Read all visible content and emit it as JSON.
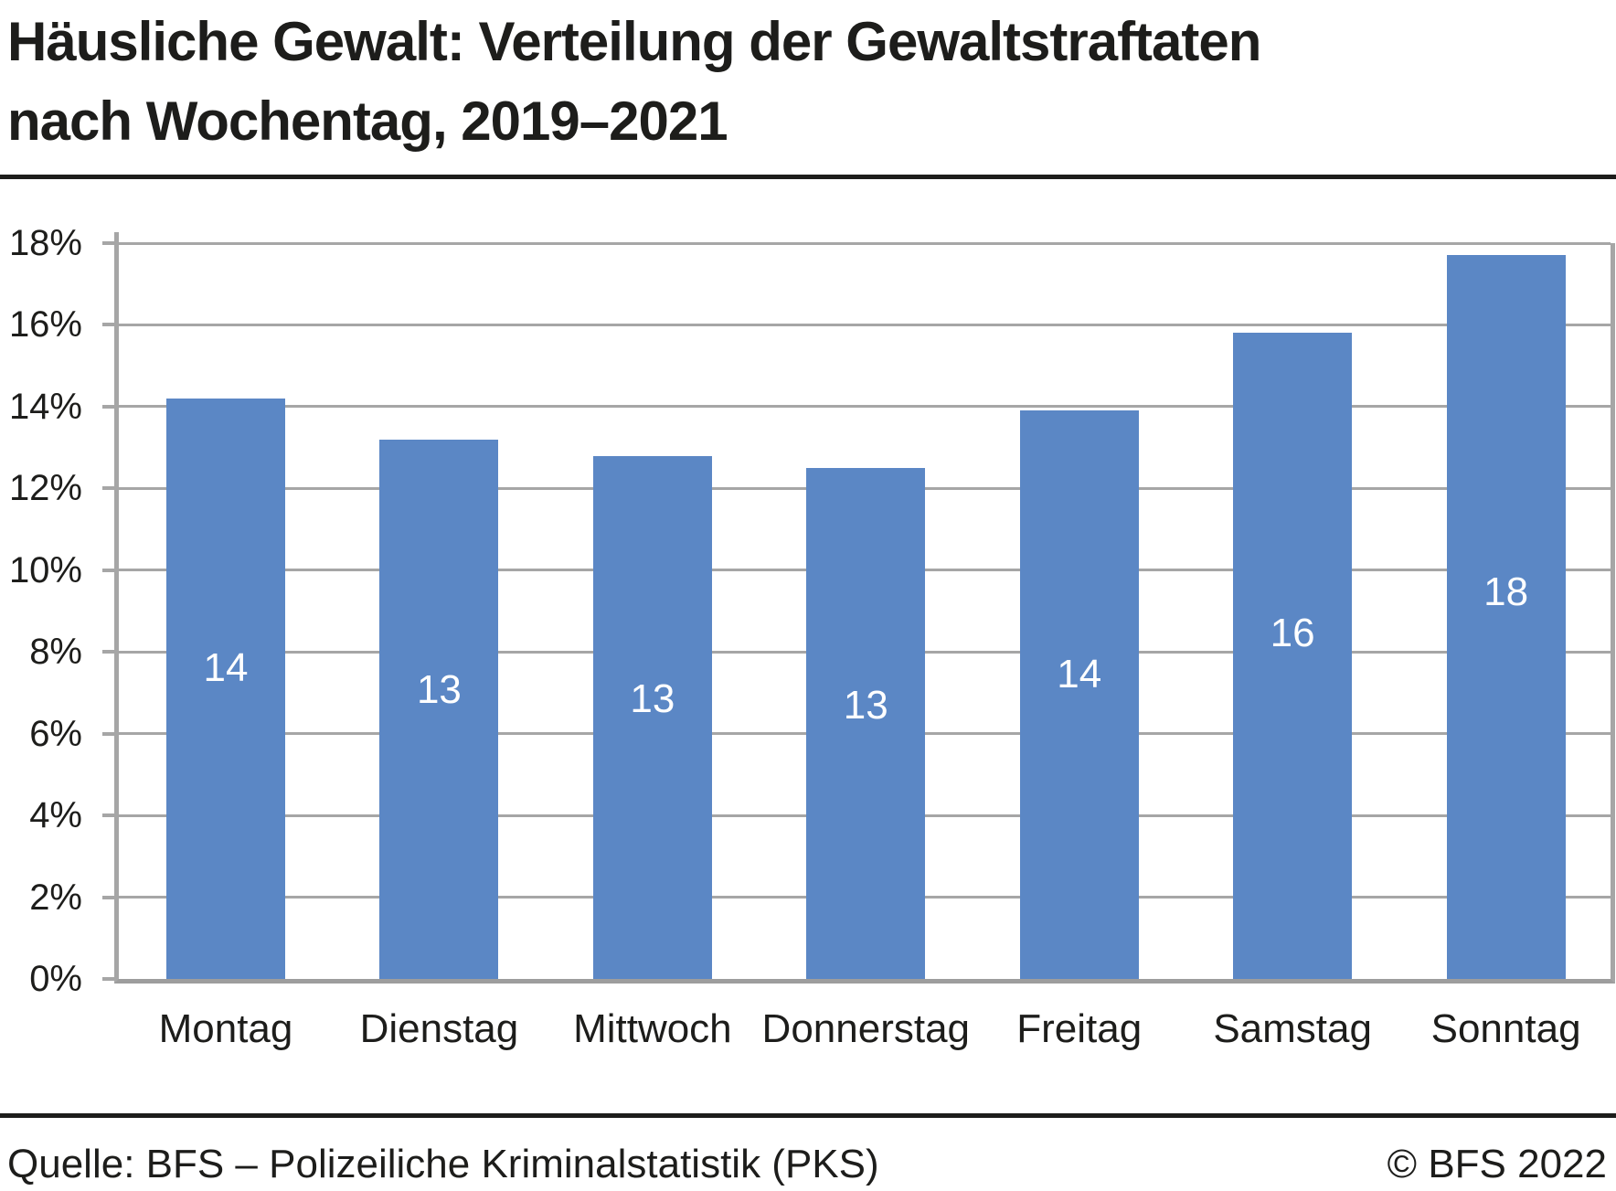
{
  "title": {
    "line1": "Häusliche Gewalt: Verteilung der Gewaltstraftaten",
    "line2": "nach Wochentag, 2019–2021"
  },
  "footer": {
    "source": "Quelle: BFS – Polizeiliche Kriminalstatistik (PKS)",
    "copyright": "© BFS 2022"
  },
  "colors": {
    "bar": "#5b87c5",
    "grid": "#a6a6a6",
    "axis": "#9d9d9d",
    "text": "#1d1d1b",
    "bar_label": "#ffffff"
  },
  "chart_data": {
    "type": "bar",
    "title": "Häusliche Gewalt: Verteilung der Gewaltstraftaten nach Wochentag, 2019–2021",
    "categories": [
      "Montag",
      "Dienstag",
      "Mittwoch",
      "Donnerstag",
      "Freitag",
      "Samstag",
      "Sonntag"
    ],
    "values": [
      14.2,
      13.2,
      12.8,
      12.5,
      13.9,
      15.8,
      17.7
    ],
    "bar_labels": [
      "14",
      "13",
      "13",
      "13",
      "14",
      "16",
      "18"
    ],
    "unit": "%",
    "xlabel": "",
    "ylabel": "",
    "ylim": [
      0,
      18
    ],
    "ytick_step": 2,
    "ytick_labels": [
      "18%",
      "16%",
      "14%",
      "12%",
      "10%",
      "8%",
      "6%",
      "4%",
      "2%",
      "0%"
    ],
    "grid": "horizontal",
    "legend": "none"
  }
}
